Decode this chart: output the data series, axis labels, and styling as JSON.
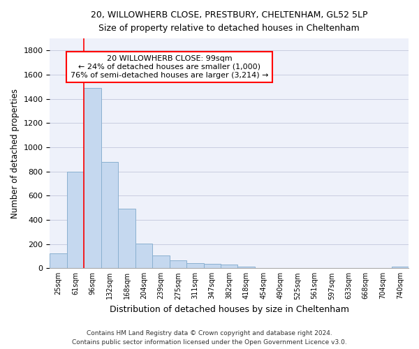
{
  "title_line1": "20, WILLOWHERB CLOSE, PRESTBURY, CHELTENHAM, GL52 5LP",
  "title_line2": "Size of property relative to detached houses in Cheltenham",
  "xlabel": "Distribution of detached houses by size in Cheltenham",
  "ylabel": "Number of detached properties",
  "footer_line1": "Contains HM Land Registry data © Crown copyright and database right 2024.",
  "footer_line2": "Contains public sector information licensed under the Open Government Licence v3.0.",
  "categories": [
    "25sqm",
    "61sqm",
    "96sqm",
    "132sqm",
    "168sqm",
    "204sqm",
    "239sqm",
    "275sqm",
    "311sqm",
    "347sqm",
    "382sqm",
    "418sqm",
    "454sqm",
    "490sqm",
    "525sqm",
    "561sqm",
    "597sqm",
    "633sqm",
    "668sqm",
    "704sqm",
    "740sqm"
  ],
  "values": [
    125,
    800,
    1490,
    880,
    490,
    205,
    105,
    65,
    40,
    35,
    30,
    15,
    0,
    0,
    0,
    0,
    0,
    0,
    0,
    0,
    15
  ],
  "bar_color": "#c5d8ef",
  "bar_edgecolor": "#8ab0d0",
  "grid_color": "#c8cce0",
  "background_color": "#eef1fa",
  "annotation_line1": "20 WILLOWHERB CLOSE: 99sqm",
  "annotation_line2": "← 24% of detached houses are smaller (1,000)",
  "annotation_line3": "76% of semi-detached houses are larger (3,214) →",
  "redline_index": 2,
  "ylim": [
    0,
    1900
  ],
  "yticks": [
    0,
    200,
    400,
    600,
    800,
    1000,
    1200,
    1400,
    1600,
    1800
  ]
}
